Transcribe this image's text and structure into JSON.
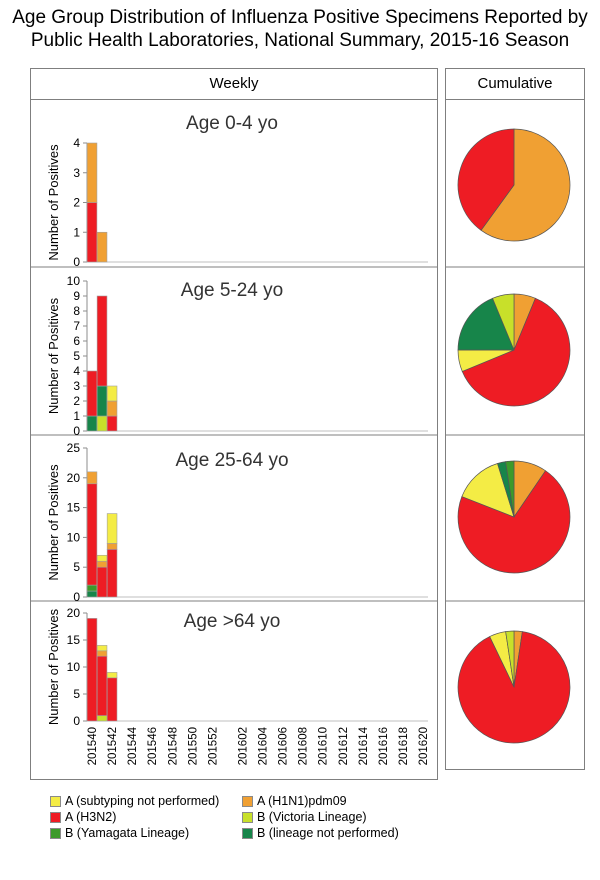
{
  "title_line1": "Age Group Distribution of Influenza Positive Specimens Reported by",
  "title_line2": "Public Health Laboratories, National Summary,  2015-16 Season",
  "weekly_header": "Weekly",
  "cumulative_header": "Cumulative",
  "ylabel": "Number of Positives",
  "series": [
    {
      "key": "bvic",
      "name": "B (Victoria Lineage)",
      "color": "#c8e02a"
    },
    {
      "key": "blin",
      "name": "B (lineage not performed)",
      "color": "#17854a"
    },
    {
      "key": "byam",
      "name": "B (Yamagata Lineage)",
      "color": "#3c9a2a"
    },
    {
      "key": "h3n2",
      "name": "A (H3N2)",
      "color": "#ee1c24"
    },
    {
      "key": "h1n1",
      "name": "A (H1N1)pdm09",
      "color": "#f0a033"
    },
    {
      "key": "anot",
      "name": "A (subtyping not performed)",
      "color": "#f4ec45"
    }
  ],
  "legend": [
    {
      "label": "A (subtyping not performed)",
      "color": "#f4ec45"
    },
    {
      "label": "A (H1N1)pdm09",
      "color": "#f0a033"
    },
    {
      "label": "A (H3N2)",
      "color": "#ee1c24"
    },
    {
      "label": "B (Victoria Lineage)",
      "color": "#c8e02a"
    },
    {
      "label": "B (Yamagata Lineage)",
      "color": "#3c9a2a"
    },
    {
      "label": "B (lineage not performed)",
      "color": "#17854a"
    }
  ],
  "chart_data": {
    "type": "bar",
    "stacked": true,
    "categories": [
      "201540",
      "201541",
      "201542",
      "201543",
      "201544",
      "201545",
      "201546",
      "201547",
      "201548",
      "201549",
      "201550",
      "201551",
      "201552",
      "201553",
      "201601",
      "201602",
      "201603",
      "201604",
      "201605",
      "201606",
      "201607",
      "201608",
      "201609",
      "201610",
      "201611",
      "201612",
      "201613",
      "201614",
      "201615",
      "201616",
      "201617",
      "201618",
      "201619",
      "201620"
    ],
    "tick_labels": [
      "201540",
      "201542",
      "201544",
      "201546",
      "201548",
      "201550",
      "201552",
      "201602",
      "201604",
      "201606",
      "201608",
      "201610",
      "201612",
      "201614",
      "201616",
      "201618",
      "201620"
    ],
    "panels": [
      {
        "label": "Age 0-4 yo",
        "ylim": [
          0,
          4
        ],
        "yticks": [
          0,
          1,
          2,
          3,
          4
        ],
        "weeks": [
          {
            "week": "201540",
            "bvic": 0,
            "blin": 0,
            "byam": 0,
            "h3n2": 2,
            "h1n1": 2,
            "anot": 0
          },
          {
            "week": "201541",
            "bvic": 0,
            "blin": 0,
            "byam": 0,
            "h3n2": 0,
            "h1n1": 1,
            "anot": 0
          }
        ],
        "cumulative": [
          {
            "name": "A (H1N1)pdm09",
            "value": 3,
            "color": "#f0a033"
          },
          {
            "name": "A (H3N2)",
            "value": 2,
            "color": "#ee1c24"
          }
        ]
      },
      {
        "label": "Age 5-24 yo",
        "ylim": [
          0,
          10
        ],
        "yticks": [
          0,
          1,
          2,
          3,
          4,
          5,
          6,
          7,
          8,
          9,
          10
        ],
        "weeks": [
          {
            "week": "201540",
            "bvic": 0,
            "blin": 1,
            "byam": 0,
            "h3n2": 3,
            "h1n1": 0,
            "anot": 0
          },
          {
            "week": "201541",
            "bvic": 1,
            "blin": 2,
            "byam": 0,
            "h3n2": 6,
            "h1n1": 0,
            "anot": 0
          },
          {
            "week": "201542",
            "bvic": 0,
            "blin": 0,
            "byam": 0,
            "h3n2": 1,
            "h1n1": 1,
            "anot": 1
          }
        ],
        "cumulative": [
          {
            "name": "A (H1N1)pdm09",
            "value": 1,
            "color": "#f0a033"
          },
          {
            "name": "A (H3N2)",
            "value": 10,
            "color": "#ee1c24"
          },
          {
            "name": "A (subtyping not performed)",
            "value": 1,
            "color": "#f4ec45"
          },
          {
            "name": "B (lineage not performed)",
            "value": 3,
            "color": "#17854a"
          },
          {
            "name": "B (Victoria Lineage)",
            "value": 1,
            "color": "#c8e02a"
          }
        ]
      },
      {
        "label": "Age 25-64 yo",
        "ylim": [
          0,
          25
        ],
        "yticks": [
          0,
          5,
          10,
          15,
          20,
          25
        ],
        "weeks": [
          {
            "week": "201540",
            "bvic": 0,
            "blin": 1,
            "byam": 1,
            "h3n2": 17,
            "h1n1": 2,
            "anot": 0
          },
          {
            "week": "201541",
            "bvic": 0,
            "blin": 0,
            "byam": 0,
            "h3n2": 5,
            "h1n1": 1,
            "anot": 1
          },
          {
            "week": "201542",
            "bvic": 0,
            "blin": 0,
            "byam": 0,
            "h3n2": 8,
            "h1n1": 1,
            "anot": 5
          }
        ],
        "cumulative": [
          {
            "name": "A (H1N1)pdm09",
            "value": 4,
            "color": "#f0a033"
          },
          {
            "name": "A (H3N2)",
            "value": 30,
            "color": "#ee1c24"
          },
          {
            "name": "A (subtyping not performed)",
            "value": 6,
            "color": "#f4ec45"
          },
          {
            "name": "B (lineage not performed)",
            "value": 1,
            "color": "#17854a"
          },
          {
            "name": "B (Yamagata Lineage)",
            "value": 1,
            "color": "#3c9a2a"
          }
        ]
      },
      {
        "label": "Age >64 yo",
        "ylim": [
          0,
          20
        ],
        "yticks": [
          0,
          5,
          10,
          15,
          20
        ],
        "weeks": [
          {
            "week": "201540",
            "bvic": 0,
            "blin": 0,
            "byam": 0,
            "h3n2": 19,
            "h1n1": 0,
            "anot": 0
          },
          {
            "week": "201541",
            "bvic": 1,
            "blin": 0,
            "byam": 0,
            "h3n2": 11,
            "h1n1": 1,
            "anot": 1
          },
          {
            "week": "201542",
            "bvic": 0,
            "blin": 0,
            "byam": 0,
            "h3n2": 8,
            "h1n1": 0,
            "anot": 1
          }
        ],
        "cumulative": [
          {
            "name": "A (H1N1)pdm09",
            "value": 1,
            "color": "#f0a033"
          },
          {
            "name": "A (H3N2)",
            "value": 38,
            "color": "#ee1c24"
          },
          {
            "name": "A (subtyping not performed)",
            "value": 2,
            "color": "#f4ec45"
          },
          {
            "name": "B (Victoria Lineage)",
            "value": 1,
            "color": "#c8e02a"
          }
        ]
      }
    ]
  }
}
